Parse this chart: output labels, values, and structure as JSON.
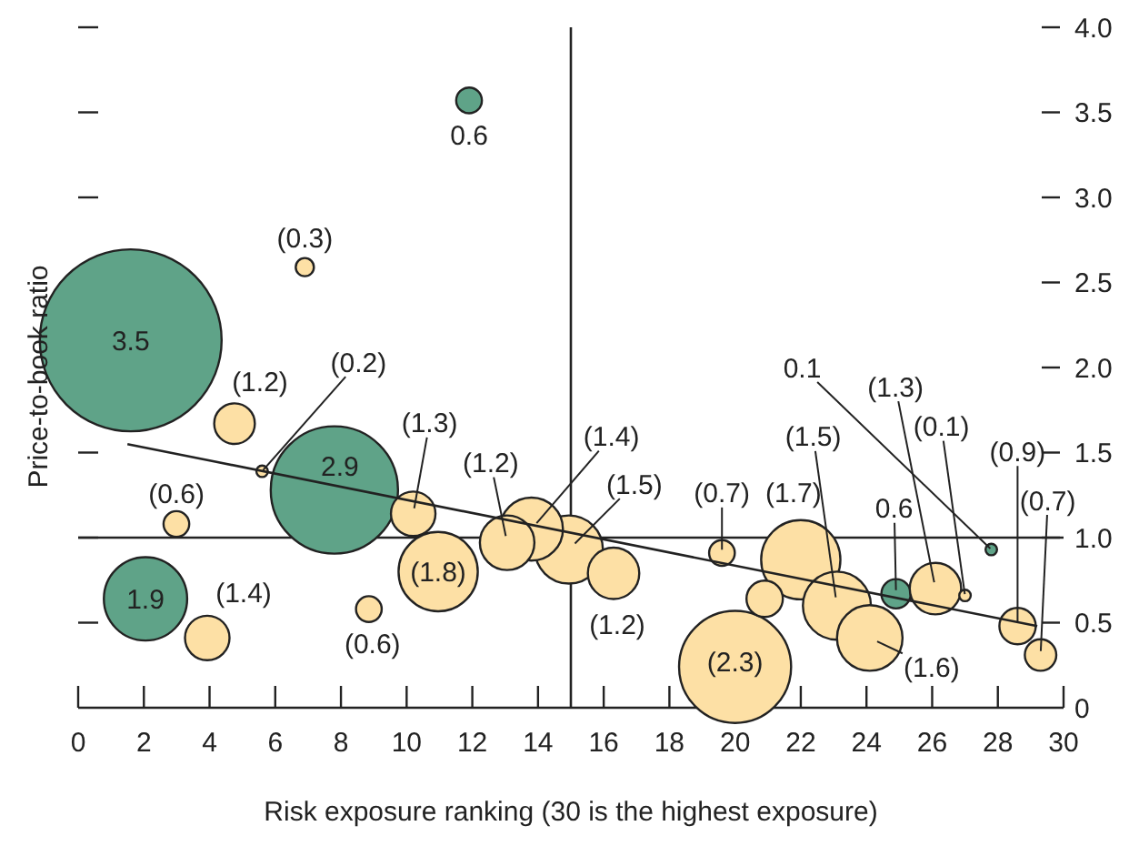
{
  "chart_data": {
    "type": "bubble",
    "xlabel": "Risk exposure ranking (30 is the highest exposure)",
    "ylabel": "Price-to-book ratio",
    "xlim": [
      0,
      30
    ],
    "xticks": [
      0,
      2,
      4,
      6,
      8,
      10,
      12,
      14,
      16,
      18,
      20,
      22,
      24,
      26,
      28,
      30
    ],
    "ylim": [
      0,
      4
    ],
    "yticks": [
      0,
      {
        "value": 0.5,
        "label": "0.5"
      },
      {
        "value": 1,
        "label": "1.0"
      },
      {
        "value": 1.5,
        "label": "1.5"
      },
      {
        "value": 2,
        "label": "2.0"
      },
      {
        "value": 2.5,
        "label": "2.5"
      },
      {
        "value": 3,
        "label": "3.0"
      },
      {
        "value": 3.5,
        "label": "3.5"
      },
      {
        "value": 4,
        "label": "4.0"
      }
    ],
    "grid": false,
    "ref_lines": [
      {
        "axis": "x",
        "value": 15,
        "color": "#222222"
      },
      {
        "axis": "y",
        "value": 1,
        "color": "#222222"
      }
    ],
    "series": [
      {
        "type": "bubble",
        "color": "#5fa388",
        "x": [
          11.9,
          1.6,
          7.8,
          2.05,
          24.9,
          27.8
        ],
        "values": [
          3.57,
          2.16,
          1.28,
          0.64,
          0.67,
          0.93
        ],
        "sizes": [
          0.02,
          1,
          0.49,
          0.21,
          0.026,
          0.004
        ]
      },
      {
        "type": "bubble",
        "color": "#fde0a5",
        "x": [
          6.9,
          4.76,
          5.6,
          2.99,
          3.93,
          8.85,
          10.2,
          10.96,
          13.06,
          13.8,
          14.94,
          16.3,
          19.6,
          20.0,
          20.9,
          22.0,
          23.1,
          24.1,
          26.1,
          27.0,
          28.6,
          29.3
        ],
        "values": [
          2.59,
          1.67,
          1.39,
          1.08,
          0.41,
          0.58,
          1.14,
          0.8,
          0.97,
          1.05,
          0.93,
          0.79,
          0.91,
          0.24,
          0.64,
          0.87,
          0.6,
          0.41,
          0.7,
          0.66,
          0.48,
          0.31
        ],
        "sizes": [
          0.01,
          0.05,
          0.004,
          0.02,
          0.06,
          0.02,
          0.06,
          0.19,
          0.09,
          0.12,
          0.14,
          0.08,
          0.02,
          0.38,
          0.04,
          0.19,
          0.14,
          0.13,
          0.08,
          0.004,
          0.04,
          0.03
        ]
      },
      {
        "type": "line",
        "color": "#222222",
        "x": [
          1.5,
          29.2
        ],
        "values": [
          1.55,
          0.48
        ]
      }
    ],
    "annotations": [
      {
        "text": "0.6",
        "x": 11.9,
        "y": 3.57
      },
      {
        "text": "3.5",
        "x": 1.6,
        "y": 2.16
      },
      {
        "text": "2.9",
        "x": 7.8,
        "y": 1.28
      },
      {
        "text": "1.9",
        "x": 2.05,
        "y": 0.64
      },
      {
        "text": "0.6",
        "x": 24.9,
        "y": 0.67
      },
      {
        "text": "0.1",
        "x": 27.8,
        "y": 0.93
      },
      {
        "text": "(0.3)",
        "x": 6.9,
        "y": 2.59
      },
      {
        "text": "(1.2)",
        "x": 4.76,
        "y": 1.67
      },
      {
        "text": "(0.2)",
        "x": 5.6,
        "y": 1.39
      },
      {
        "text": "(0.6)",
        "x": 2.99,
        "y": 1.08
      },
      {
        "text": "(1.4)",
        "x": 3.93,
        "y": 0.41
      },
      {
        "text": "(0.6)",
        "x": 8.85,
        "y": 0.58
      },
      {
        "text": "(1.3)",
        "x": 10.2,
        "y": 1.14
      },
      {
        "text": "(1.8)",
        "x": 10.96,
        "y": 0.8
      },
      {
        "text": "(1.2)",
        "x": 13.06,
        "y": 0.97
      },
      {
        "text": "(1.4)",
        "x": 13.8,
        "y": 1.05
      },
      {
        "text": "(1.5)",
        "x": 14.94,
        "y": 0.93
      },
      {
        "text": "(1.2)",
        "x": 16.3,
        "y": 0.79
      },
      {
        "text": "(0.7)",
        "x": 19.6,
        "y": 0.91
      },
      {
        "text": "(2.3)",
        "x": 20.0,
        "y": 0.24
      },
      {
        "text": "(1.7)",
        "x": 22.0,
        "y": 0.87
      },
      {
        "text": "(1.5)",
        "x": 23.1,
        "y": 0.6
      },
      {
        "text": "(1.6)",
        "x": 24.1,
        "y": 0.41
      },
      {
        "text": "(1.3)",
        "x": 26.1,
        "y": 0.7
      },
      {
        "text": "(0.1)",
        "x": 27.0,
        "y": 0.66
      },
      {
        "text": "(0.9)",
        "x": 28.6,
        "y": 0.48
      },
      {
        "text": "(0.7)",
        "x": 29.3,
        "y": 0.31
      }
    ]
  }
}
